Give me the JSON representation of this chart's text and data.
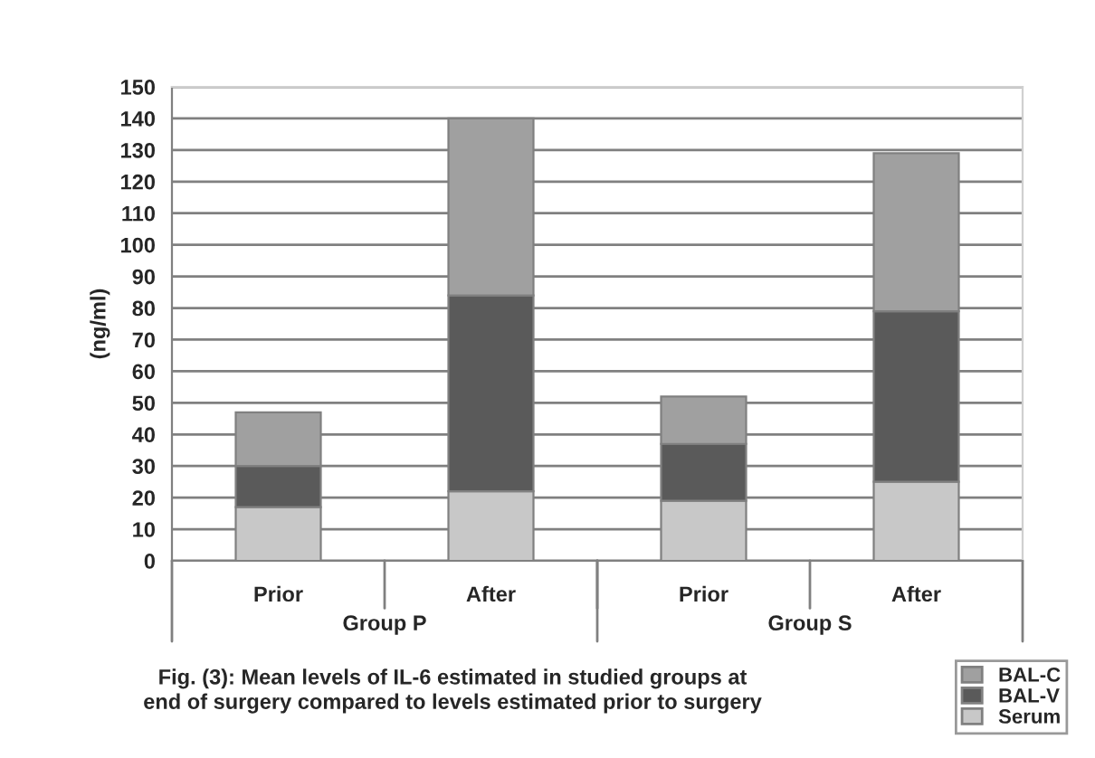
{
  "chart_data": {
    "type": "bar",
    "stacked": true,
    "ylabel": "(ng/ml)",
    "categories": [
      "Prior",
      "After",
      "Prior",
      "After"
    ],
    "series": [
      {
        "name": "Serum",
        "color": "#c8c8c8",
        "values": [
          17,
          22,
          19,
          25
        ]
      },
      {
        "name": "BAL-V",
        "color": "#5a5a5a",
        "values": [
          13,
          62,
          18,
          54
        ]
      },
      {
        "name": "BAL-C",
        "color": "#a0a0a0",
        "values": [
          17,
          56,
          15,
          50
        ]
      }
    ],
    "ylim": [
      0,
      150
    ],
    "yticks": [
      0,
      10,
      20,
      30,
      40,
      50,
      60,
      70,
      80,
      90,
      100,
      110,
      120,
      130,
      140,
      150
    ],
    "grid": "y",
    "legend": "bottom right",
    "annotations": [
      "Group P",
      "Group S",
      "Fig. (3): Mean levels of IL-6 estimated in studied groups at\nend of surgery compared to levels estimated prior to surgery"
    ]
  }
}
